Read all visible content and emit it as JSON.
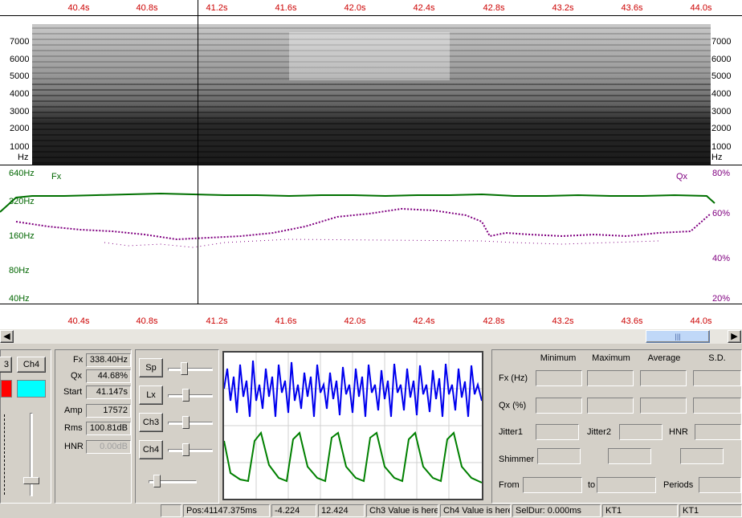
{
  "time_axis": {
    "ticks": [
      "40.4s",
      "40.8s",
      "41.2s",
      "41.6s",
      "42.0s",
      "42.4s",
      "42.8s",
      "43.2s",
      "43.6s",
      "44.0s"
    ],
    "cursor_time": "41.147s"
  },
  "spectrogram": {
    "freq_labels": [
      "7000",
      "6000",
      "5000",
      "4000",
      "3000",
      "2000",
      "1000"
    ],
    "unit": "Hz"
  },
  "trace": {
    "fx_name": "Fx",
    "qx_name": "Qx",
    "fx_scale": [
      "640Hz",
      "320Hz",
      "160Hz",
      "80Hz",
      "40Hz"
    ],
    "qx_scale": [
      "80%",
      "60%",
      "40%",
      "20%"
    ],
    "fx_color": "#007000",
    "qx_color": "#800080"
  },
  "channels": {
    "ch3_label": "3",
    "ch4_label": "Ch4",
    "color_a": "#ff0000",
    "color_b": "#00ffff"
  },
  "measurements": {
    "fx_label": "Fx",
    "fx_value": "338.40Hz",
    "qx_label": "Qx",
    "qx_value": "44.68%",
    "start_label": "Start",
    "start_value": "41.147s",
    "amp_label": "Amp",
    "amp_value": "17572",
    "rms_label": "Rms",
    "rms_value": "100.81dB",
    "hnr_label": "HNR",
    "hnr_value": "0.00dB"
  },
  "gain_buttons": [
    "Sp",
    "Lx",
    "Ch3",
    "Ch4"
  ],
  "waveform": {
    "top_color": "#0000ee",
    "bottom_color": "#008000"
  },
  "stats": {
    "headers": [
      "Minimum",
      "Maximum",
      "Average",
      "S.D."
    ],
    "rows": [
      "Fx (Hz)",
      "Qx (%)"
    ],
    "jitter1": "Jitter1",
    "jitter2": "Jitter2",
    "hnr": "HNR",
    "shimmer": "Shimmer",
    "from": "From",
    "to": "to",
    "periods": "Periods"
  },
  "status_bar": {
    "pos": "Pos:41147.375ms",
    "v1": "-4.224",
    "v2": "12.424",
    "ch3": "Ch3 Value is here",
    "ch4": "Ch4 Value is here",
    "seldur": "SelDur: 0.000ms",
    "kt1a": "KT1",
    "kt1b": "KT1"
  }
}
